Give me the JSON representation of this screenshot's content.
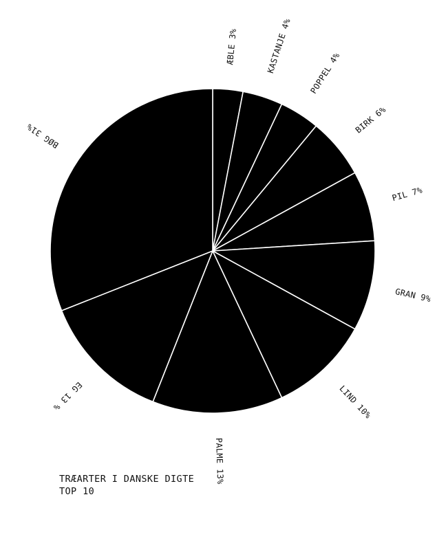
{
  "chart_data": {
    "type": "pie",
    "title": "TRÆARTER I DANSKE DIGTE",
    "subtitle": "TOP 10",
    "slices": [
      {
        "name": "ÆBLE",
        "value": 3,
        "label": "ÆBLE 3%"
      },
      {
        "name": "KASTANJE",
        "value": 4,
        "label": "KASTANJE 4%"
      },
      {
        "name": "POPPEL",
        "value": 4,
        "label": "POPPEL 4%"
      },
      {
        "name": "BIRK",
        "value": 6,
        "label": "BIRK 6%"
      },
      {
        "name": "PIL",
        "value": 7,
        "label": "PIL 7%"
      },
      {
        "name": "GRAN",
        "value": 9,
        "label": "GRAN 9%"
      },
      {
        "name": "LIND",
        "value": 10,
        "label": "LIND 10%"
      },
      {
        "name": "PALME",
        "value": 13,
        "label": "PALME 13%"
      },
      {
        "name": "EG",
        "value": 13,
        "label": "EG 13 %"
      },
      {
        "name": "BØG",
        "value": 31,
        "label": "BØG 31%"
      }
    ],
    "colors": {
      "fill": "#000000",
      "stroke": "#ffffff",
      "text": "#111111"
    }
  }
}
